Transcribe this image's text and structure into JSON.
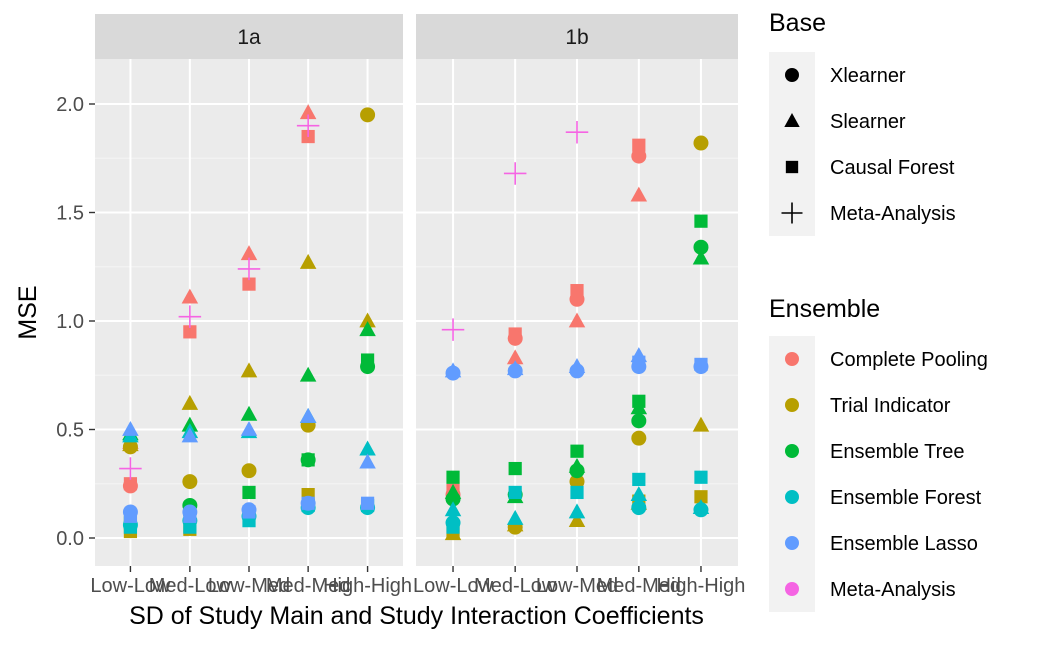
{
  "chart_data": {
    "type": "scatter",
    "ylabel": "MSE",
    "xlabel": "SD of Study Main and Study Interaction Coefficients",
    "categories": [
      "Low-Low",
      "Med-Low",
      "Low-Med",
      "Med-Med",
      "High-High"
    ],
    "y_ticks": [
      "0.0",
      "0.5",
      "1.0",
      "1.5",
      "2.0"
    ],
    "ylim": [
      -0.08,
      2.2
    ],
    "grid": true,
    "panels": [
      "1a",
      "1b"
    ],
    "legend_position": "right",
    "legends": {
      "base": {
        "title": "Base",
        "entries": [
          {
            "label": "Xlearner",
            "shape": "circle"
          },
          {
            "label": "Slearner",
            "shape": "triangle"
          },
          {
            "label": "Causal Forest",
            "shape": "square"
          },
          {
            "label": "Meta-Analysis",
            "shape": "plus"
          }
        ]
      },
      "ensemble": {
        "title": "Ensemble",
        "entries": [
          {
            "label": "Complete Pooling",
            "color": "#F8766D"
          },
          {
            "label": "Trial Indicator",
            "color": "#B79F00"
          },
          {
            "label": "Ensemble Tree",
            "color": "#00BA38"
          },
          {
            "label": "Ensemble Forest",
            "color": "#00BFC4"
          },
          {
            "label": "Ensemble Lasso",
            "color": "#619CFF"
          },
          {
            "label": "Meta-Analysis",
            "color": "#F564E3"
          }
        ]
      }
    },
    "series": [
      {
        "panel": "1a",
        "category": "Low-Low",
        "points": [
          {
            "ensemble": "Complete Pooling",
            "base": "circle",
            "y": 0.24
          },
          {
            "ensemble": "Complete Pooling",
            "base": "square",
            "y": 0.25
          },
          {
            "ensemble": "Complete Pooling",
            "base": "triangle",
            "y": 0.44
          },
          {
            "ensemble": "Trial Indicator",
            "base": "circle",
            "y": 0.42
          },
          {
            "ensemble": "Trial Indicator",
            "base": "triangle",
            "y": 0.43
          },
          {
            "ensemble": "Trial Indicator",
            "base": "square",
            "y": 0.03
          },
          {
            "ensemble": "Ensemble Tree",
            "base": "triangle",
            "y": 0.48
          },
          {
            "ensemble": "Ensemble Tree",
            "base": "square",
            "y": 0.07
          },
          {
            "ensemble": "Ensemble Forest",
            "base": "triangle",
            "y": 0.47
          },
          {
            "ensemble": "Ensemble Forest",
            "base": "circle",
            "y": 0.06
          },
          {
            "ensemble": "Ensemble Forest",
            "base": "square",
            "y": 0.05
          },
          {
            "ensemble": "Ensemble Lasso",
            "base": "triangle",
            "y": 0.5
          },
          {
            "ensemble": "Ensemble Lasso",
            "base": "circle",
            "y": 0.12
          },
          {
            "ensemble": "Ensemble Lasso",
            "base": "square",
            "y": 0.1
          },
          {
            "ensemble": "Meta-Analysis",
            "base": "plus",
            "y": 0.32
          }
        ]
      },
      {
        "panel": "1a",
        "category": "Med-Low",
        "points": [
          {
            "ensemble": "Complete Pooling",
            "base": "triangle",
            "y": 1.11
          },
          {
            "ensemble": "Complete Pooling",
            "base": "square",
            "y": 0.95
          },
          {
            "ensemble": "Trial Indicator",
            "base": "triangle",
            "y": 0.62
          },
          {
            "ensemble": "Trial Indicator",
            "base": "circle",
            "y": 0.26
          },
          {
            "ensemble": "Trial Indicator",
            "base": "square",
            "y": 0.04
          },
          {
            "ensemble": "Ensemble Tree",
            "base": "triangle",
            "y": 0.52
          },
          {
            "ensemble": "Ensemble Tree",
            "base": "circle",
            "y": 0.15
          },
          {
            "ensemble": "Ensemble Tree",
            "base": "square",
            "y": 0.13
          },
          {
            "ensemble": "Ensemble Forest",
            "base": "triangle",
            "y": 0.49
          },
          {
            "ensemble": "Ensemble Forest",
            "base": "circle",
            "y": 0.08
          },
          {
            "ensemble": "Ensemble Forest",
            "base": "square",
            "y": 0.05
          },
          {
            "ensemble": "Ensemble Lasso",
            "base": "triangle",
            "y": 0.47
          },
          {
            "ensemble": "Ensemble Lasso",
            "base": "circle",
            "y": 0.12
          },
          {
            "ensemble": "Ensemble Lasso",
            "base": "square",
            "y": 0.1
          },
          {
            "ensemble": "Meta-Analysis",
            "base": "plus",
            "y": 1.02
          }
        ]
      },
      {
        "panel": "1a",
        "category": "Low-Med",
        "points": [
          {
            "ensemble": "Complete Pooling",
            "base": "triangle",
            "y": 1.31
          },
          {
            "ensemble": "Complete Pooling",
            "base": "square",
            "y": 1.17
          },
          {
            "ensemble": "Trial Indicator",
            "base": "triangle",
            "y": 0.77
          },
          {
            "ensemble": "Trial Indicator",
            "base": "circle",
            "y": 0.31
          },
          {
            "ensemble": "Ensemble Tree",
            "base": "triangle",
            "y": 0.57
          },
          {
            "ensemble": "Ensemble Tree",
            "base": "square",
            "y": 0.21
          },
          {
            "ensemble": "Ensemble Forest",
            "base": "triangle",
            "y": 0.49
          },
          {
            "ensemble": "Ensemble Forest",
            "base": "circle",
            "y": 0.1
          },
          {
            "ensemble": "Ensemble Forest",
            "base": "square",
            "y": 0.08
          },
          {
            "ensemble": "Ensemble Lasso",
            "base": "triangle",
            "y": 0.5
          },
          {
            "ensemble": "Ensemble Lasso",
            "base": "circle",
            "y": 0.13
          },
          {
            "ensemble": "Ensemble Lasso",
            "base": "square",
            "y": 0.12
          },
          {
            "ensemble": "Meta-Analysis",
            "base": "plus",
            "y": 1.24
          }
        ]
      },
      {
        "panel": "1a",
        "category": "Med-Med",
        "points": [
          {
            "ensemble": "Complete Pooling",
            "base": "triangle",
            "y": 1.96
          },
          {
            "ensemble": "Complete Pooling",
            "base": "square",
            "y": 1.85
          },
          {
            "ensemble": "Trial Indicator",
            "base": "triangle",
            "y": 1.27
          },
          {
            "ensemble": "Trial Indicator",
            "base": "circle",
            "y": 0.52
          },
          {
            "ensemble": "Trial Indicator",
            "base": "square",
            "y": 0.2
          },
          {
            "ensemble": "Ensemble Tree",
            "base": "triangle",
            "y": 0.75
          },
          {
            "ensemble": "Ensemble Tree",
            "base": "circle",
            "y": 0.36
          },
          {
            "ensemble": "Ensemble Tree",
            "base": "square",
            "y": 0.36
          },
          {
            "ensemble": "Ensemble Forest",
            "base": "triangle",
            "y": 0.56
          },
          {
            "ensemble": "Ensemble Forest",
            "base": "circle",
            "y": 0.14
          },
          {
            "ensemble": "Ensemble Forest",
            "base": "square",
            "y": 0.15
          },
          {
            "ensemble": "Ensemble Lasso",
            "base": "triangle",
            "y": 0.56
          },
          {
            "ensemble": "Ensemble Lasso",
            "base": "circle",
            "y": 0.16
          },
          {
            "ensemble": "Ensemble Lasso",
            "base": "square",
            "y": 0.16
          },
          {
            "ensemble": "Meta-Analysis",
            "base": "plus",
            "y": 1.9
          }
        ]
      },
      {
        "panel": "1a",
        "category": "High-High",
        "points": [
          {
            "ensemble": "Trial Indicator",
            "base": "circle",
            "y": 1.95
          },
          {
            "ensemble": "Trial Indicator",
            "base": "triangle",
            "y": 1.0
          },
          {
            "ensemble": "Ensemble Tree",
            "base": "triangle",
            "y": 0.96
          },
          {
            "ensemble": "Ensemble Tree",
            "base": "square",
            "y": 0.82
          },
          {
            "ensemble": "Ensemble Tree",
            "base": "circle",
            "y": 0.79
          },
          {
            "ensemble": "Ensemble Forest",
            "base": "triangle",
            "y": 0.41
          },
          {
            "ensemble": "Ensemble Forest",
            "base": "circle",
            "y": 0.14
          },
          {
            "ensemble": "Ensemble Forest",
            "base": "square",
            "y": 0.15
          },
          {
            "ensemble": "Ensemble Lasso",
            "base": "triangle",
            "y": 0.35
          },
          {
            "ensemble": "Ensemble Lasso",
            "base": "square",
            "y": 0.16
          }
        ]
      },
      {
        "panel": "1b",
        "category": "Low-Low",
        "points": [
          {
            "ensemble": "Complete Pooling",
            "base": "circle",
            "y": 0.2
          },
          {
            "ensemble": "Complete Pooling",
            "base": "square",
            "y": 0.22
          },
          {
            "ensemble": "Trial Indicator",
            "base": "triangle",
            "y": 0.02
          },
          {
            "ensemble": "Trial Indicator",
            "base": "square",
            "y": 0.03
          },
          {
            "ensemble": "Ensemble Tree",
            "base": "square",
            "y": 0.28
          },
          {
            "ensemble": "Ensemble Tree",
            "base": "triangle",
            "y": 0.21
          },
          {
            "ensemble": "Ensemble Tree",
            "base": "circle",
            "y": 0.18
          },
          {
            "ensemble": "Ensemble Forest",
            "base": "triangle",
            "y": 0.13
          },
          {
            "ensemble": "Ensemble Forest",
            "base": "circle",
            "y": 0.07
          },
          {
            "ensemble": "Ensemble Forest",
            "base": "square",
            "y": 0.05
          },
          {
            "ensemble": "Ensemble Lasso",
            "base": "triangle",
            "y": 0.77
          },
          {
            "ensemble": "Ensemble Lasso",
            "base": "circle",
            "y": 0.76
          },
          {
            "ensemble": "Meta-Analysis",
            "base": "plus",
            "y": 0.96
          }
        ]
      },
      {
        "panel": "1b",
        "category": "Med-Low",
        "points": [
          {
            "ensemble": "Complete Pooling",
            "base": "square",
            "y": 0.94
          },
          {
            "ensemble": "Complete Pooling",
            "base": "circle",
            "y": 0.92
          },
          {
            "ensemble": "Complete Pooling",
            "base": "triangle",
            "y": 0.83
          },
          {
            "ensemble": "Trial Indicator",
            "base": "triangle",
            "y": 0.06
          },
          {
            "ensemble": "Trial Indicator",
            "base": "circle",
            "y": 0.05
          },
          {
            "ensemble": "Ensemble Tree",
            "base": "square",
            "y": 0.32
          },
          {
            "ensemble": "Ensemble Tree",
            "base": "circle",
            "y": 0.2
          },
          {
            "ensemble": "Ensemble Tree",
            "base": "triangle",
            "y": 0.19
          },
          {
            "ensemble": "Ensemble Forest",
            "base": "square",
            "y": 0.21
          },
          {
            "ensemble": "Ensemble Forest",
            "base": "triangle",
            "y": 0.09
          },
          {
            "ensemble": "Ensemble Lasso",
            "base": "triangle",
            "y": 0.78
          },
          {
            "ensemble": "Ensemble Lasso",
            "base": "circle",
            "y": 0.77
          },
          {
            "ensemble": "Meta-Analysis",
            "base": "plus",
            "y": 1.68
          }
        ]
      },
      {
        "panel": "1b",
        "category": "Low-Med",
        "points": [
          {
            "ensemble": "Complete Pooling",
            "base": "square",
            "y": 1.14
          },
          {
            "ensemble": "Complete Pooling",
            "base": "circle",
            "y": 1.1
          },
          {
            "ensemble": "Complete Pooling",
            "base": "triangle",
            "y": 1.0
          },
          {
            "ensemble": "Trial Indicator",
            "base": "circle",
            "y": 0.26
          },
          {
            "ensemble": "Trial Indicator",
            "base": "triangle",
            "y": 0.08
          },
          {
            "ensemble": "Ensemble Tree",
            "base": "square",
            "y": 0.4
          },
          {
            "ensemble": "Ensemble Tree",
            "base": "triangle",
            "y": 0.33
          },
          {
            "ensemble": "Ensemble Tree",
            "base": "circle",
            "y": 0.31
          },
          {
            "ensemble": "Ensemble Forest",
            "base": "square",
            "y": 0.21
          },
          {
            "ensemble": "Ensemble Forest",
            "base": "triangle",
            "y": 0.12
          },
          {
            "ensemble": "Ensemble Lasso",
            "base": "triangle",
            "y": 0.79
          },
          {
            "ensemble": "Ensemble Lasso",
            "base": "circle",
            "y": 0.77
          },
          {
            "ensemble": "Meta-Analysis",
            "base": "plus",
            "y": 1.87
          }
        ]
      },
      {
        "panel": "1b",
        "category": "Med-Med",
        "points": [
          {
            "ensemble": "Complete Pooling",
            "base": "square",
            "y": 1.81
          },
          {
            "ensemble": "Complete Pooling",
            "base": "circle",
            "y": 1.76
          },
          {
            "ensemble": "Complete Pooling",
            "base": "triangle",
            "y": 1.58
          },
          {
            "ensemble": "Trial Indicator",
            "base": "circle",
            "y": 0.46
          },
          {
            "ensemble": "Trial Indicator",
            "base": "square",
            "y": 0.17
          },
          {
            "ensemble": "Trial Indicator",
            "base": "triangle",
            "y": 0.16
          },
          {
            "ensemble": "Ensemble Tree",
            "base": "square",
            "y": 0.63
          },
          {
            "ensemble": "Ensemble Tree",
            "base": "triangle",
            "y": 0.6
          },
          {
            "ensemble": "Ensemble Tree",
            "base": "circle",
            "y": 0.54
          },
          {
            "ensemble": "Ensemble Forest",
            "base": "square",
            "y": 0.27
          },
          {
            "ensemble": "Ensemble Forest",
            "base": "triangle",
            "y": 0.2
          },
          {
            "ensemble": "Ensemble Forest",
            "base": "circle",
            "y": 0.14
          },
          {
            "ensemble": "Ensemble Lasso",
            "base": "triangle",
            "y": 0.84
          },
          {
            "ensemble": "Ensemble Lasso",
            "base": "square",
            "y": 0.81
          },
          {
            "ensemble": "Ensemble Lasso",
            "base": "circle",
            "y": 0.79
          }
        ]
      },
      {
        "panel": "1b",
        "category": "High-High",
        "points": [
          {
            "ensemble": "Trial Indicator",
            "base": "circle",
            "y": 1.82
          },
          {
            "ensemble": "Trial Indicator",
            "base": "triangle",
            "y": 0.52
          },
          {
            "ensemble": "Trial Indicator",
            "base": "square",
            "y": 0.19
          },
          {
            "ensemble": "Ensemble Tree",
            "base": "square",
            "y": 1.46
          },
          {
            "ensemble": "Ensemble Tree",
            "base": "circle",
            "y": 1.34
          },
          {
            "ensemble": "Ensemble Tree",
            "base": "triangle",
            "y": 1.29
          },
          {
            "ensemble": "Ensemble Forest",
            "base": "square",
            "y": 0.28
          },
          {
            "ensemble": "Ensemble Forest",
            "base": "triangle",
            "y": 0.14
          },
          {
            "ensemble": "Ensemble Forest",
            "base": "circle",
            "y": 0.13
          },
          {
            "ensemble": "Ensemble Lasso",
            "base": "square",
            "y": 0.8
          },
          {
            "ensemble": "Ensemble Lasso",
            "base": "circle",
            "y": 0.79
          }
        ]
      }
    ]
  }
}
